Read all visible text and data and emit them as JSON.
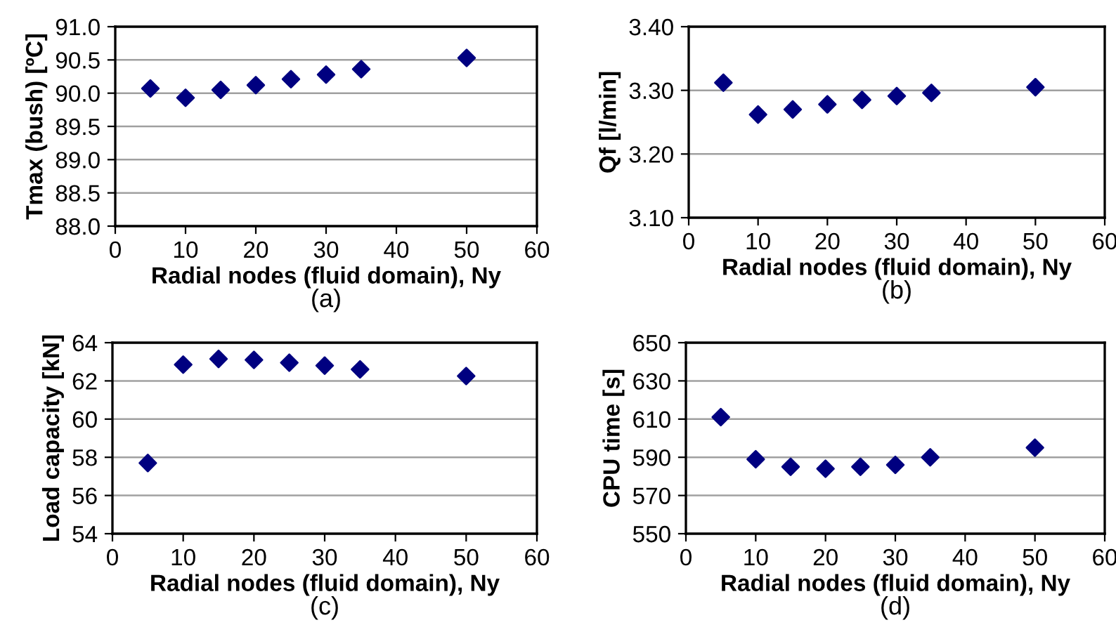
{
  "chart_data": [
    {
      "type": "scatter",
      "xlabel": "Radial nodes (fluid domain), Ny",
      "ylabel": "Tmax (bush) [ºC]",
      "annotations": [
        "(a)"
      ],
      "x": [
        5,
        10,
        15,
        20,
        25,
        30,
        35,
        50
      ],
      "series": [
        {
          "color": "#000080",
          "values": [
            90.07,
            89.93,
            90.05,
            90.12,
            90.21,
            90.28,
            90.36,
            90.53
          ]
        }
      ],
      "xlim": [
        0,
        60
      ],
      "xticks": [
        0,
        10,
        20,
        30,
        40,
        50,
        60
      ],
      "ylim": [
        88.0,
        91.0
      ],
      "yticks": [
        {
          "value": 88.0,
          "label": "88.0"
        },
        {
          "value": 88.5,
          "label": "88.5"
        },
        {
          "value": 89.0,
          "label": "89.0"
        },
        {
          "value": 89.5,
          "label": "89.5"
        },
        {
          "value": 90.0,
          "label": "90.0"
        },
        {
          "value": 90.5,
          "label": "90.5"
        },
        {
          "value": 91.0,
          "label": "91.0"
        }
      ],
      "grid": "y",
      "marker": "diamond"
    },
    {
      "type": "scatter",
      "xlabel": "Radial nodes (fluid domain), Ny",
      "ylabel": "Qf [l/min]",
      "annotations": [
        "(b)"
      ],
      "x": [
        5,
        10,
        15,
        20,
        25,
        30,
        35,
        50
      ],
      "series": [
        {
          "color": "#000080",
          "values": [
            3.312,
            3.262,
            3.27,
            3.278,
            3.285,
            3.291,
            3.296,
            3.305
          ]
        }
      ],
      "xlim": [
        0,
        60
      ],
      "xticks": [
        0,
        10,
        20,
        30,
        40,
        50,
        60
      ],
      "ylim": [
        3.1,
        3.4
      ],
      "yticks": [
        {
          "value": 3.1,
          "label": "3.10"
        },
        {
          "value": 3.2,
          "label": "3.20"
        },
        {
          "value": 3.3,
          "label": "3.30"
        },
        {
          "value": 3.4,
          "label": "3.40"
        }
      ],
      "grid": "y",
      "marker": "diamond"
    },
    {
      "type": "scatter",
      "xlabel": "Radial nodes (fluid domain), Ny",
      "ylabel": "Load capacity [kN]",
      "annotations": [
        "(c)"
      ],
      "x": [
        5,
        10,
        15,
        20,
        25,
        30,
        35,
        50
      ],
      "series": [
        {
          "color": "#000080",
          "values": [
            57.7,
            62.85,
            63.15,
            63.1,
            62.95,
            62.8,
            62.6,
            62.25
          ]
        }
      ],
      "xlim": [
        0,
        60
      ],
      "xticks": [
        0,
        10,
        20,
        30,
        40,
        50,
        60
      ],
      "ylim": [
        54,
        64
      ],
      "yticks": [
        54,
        56,
        58,
        60,
        62,
        64
      ],
      "grid": "y",
      "marker": "diamond"
    },
    {
      "type": "scatter",
      "xlabel": "Radial nodes (fluid domain), Ny",
      "ylabel": "CPU time [s]",
      "annotations": [
        "(d)"
      ],
      "x": [
        5,
        10,
        15,
        20,
        25,
        30,
        35,
        50
      ],
      "series": [
        {
          "color": "#000080",
          "values": [
            611,
            589,
            585,
            584,
            585,
            586,
            590,
            595
          ]
        }
      ],
      "xlim": [
        0,
        60
      ],
      "xticks": [
        0,
        10,
        20,
        30,
        40,
        50,
        60
      ],
      "ylim": [
        550,
        650
      ],
      "yticks": [
        550,
        570,
        590,
        610,
        630,
        650
      ],
      "grid": "y",
      "marker": "diamond"
    }
  ]
}
